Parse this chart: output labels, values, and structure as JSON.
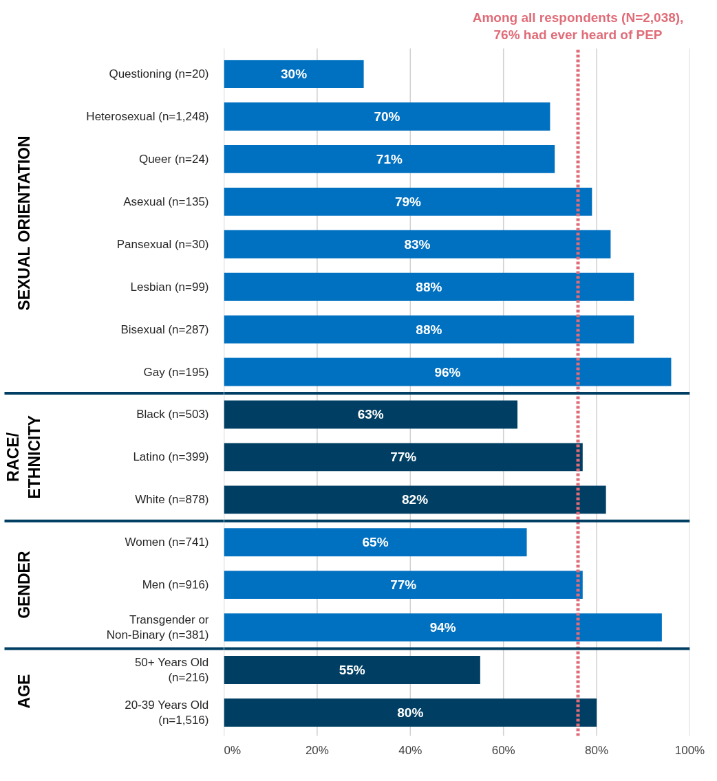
{
  "chart_data": {
    "type": "bar",
    "orientation": "horizontal",
    "categories": [
      "Questioning (n=20)",
      "Heterosexual (n=1,248)",
      "Queer (n=24)",
      "Asexual (n=135)",
      "Pansexual (n=30)",
      "Lesbian (n=99)",
      "Bisexual (n=287)",
      "Gay (n=195)",
      "Black (n=503)",
      "Latino (n=399)",
      "White (n=878)",
      "Women (n=741)",
      "Men (n=916)",
      "Transgender or\nNon-Binary (n=381)",
      "50+ Years Old\n(n=216)",
      "20-39 Years Old\n(n=1,516)"
    ],
    "values": [
      30,
      70,
      71,
      79,
      83,
      88,
      88,
      96,
      63,
      77,
      82,
      65,
      77,
      94,
      55,
      80
    ],
    "colors": [
      "#0070c0",
      "#0070c0",
      "#0070c0",
      "#0070c0",
      "#0070c0",
      "#0070c0",
      "#0070c0",
      "#0070c0",
      "#003f63",
      "#003f63",
      "#003f63",
      "#0070c0",
      "#0070c0",
      "#0070c0",
      "#003f63",
      "#003f63"
    ],
    "value_labels": [
      "30%",
      "70%",
      "71%",
      "79%",
      "83%",
      "88%",
      "88%",
      "96%",
      "63%",
      "77%",
      "82%",
      "65%",
      "77%",
      "94%",
      "55%",
      "80%"
    ],
    "annotations": [
      "SEXUAL ORIENTATION",
      "RACE/\nETHNICITY",
      "GENDER",
      "AGE"
    ],
    "ref_lines": [
      {
        "axis": "x",
        "value": 76,
        "label": "Among all respondents (N=2,038),\n76% had ever heard of PEP",
        "color": "#e06c78",
        "line_style": "dotted"
      }
    ],
    "xlim": [
      0,
      100
    ],
    "xticks": [
      {
        "value": 0,
        "label": "0%"
      },
      {
        "value": 20,
        "label": "20%"
      },
      {
        "value": 40,
        "label": "40%"
      },
      {
        "value": 60,
        "label": "60%"
      },
      {
        "value": 80,
        "label": "80%"
      },
      {
        "value": 100,
        "label": "100%"
      }
    ],
    "grid": "x"
  }
}
